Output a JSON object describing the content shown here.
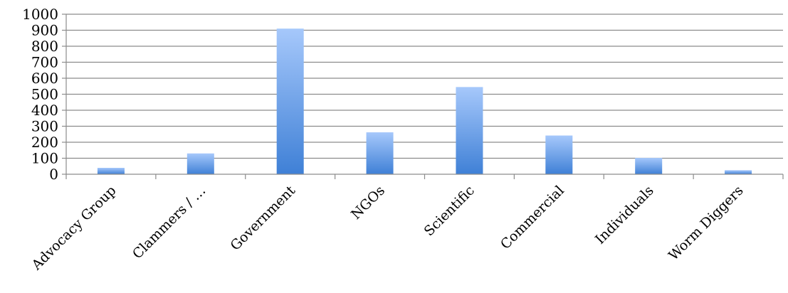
{
  "chart_data": {
    "type": "bar",
    "title": "",
    "xlabel": "",
    "ylabel": "",
    "categories": [
      "Advocacy Group",
      "Clammers / …",
      "Government",
      "NGOs",
      "Scientific",
      "Commercial",
      "Individuals",
      "Worm Diggers"
    ],
    "values": [
      40,
      130,
      910,
      262,
      545,
      242,
      102,
      25
    ],
    "ylim": [
      0,
      1000
    ],
    "yticks": [
      0,
      100,
      200,
      300,
      400,
      500,
      600,
      700,
      800,
      900,
      1000
    ],
    "grid": true,
    "legend": "none",
    "colors": {
      "bar_top": "#a6c8fb",
      "bar_bottom": "#3f80d6",
      "grid": "#8c8c8c"
    }
  }
}
